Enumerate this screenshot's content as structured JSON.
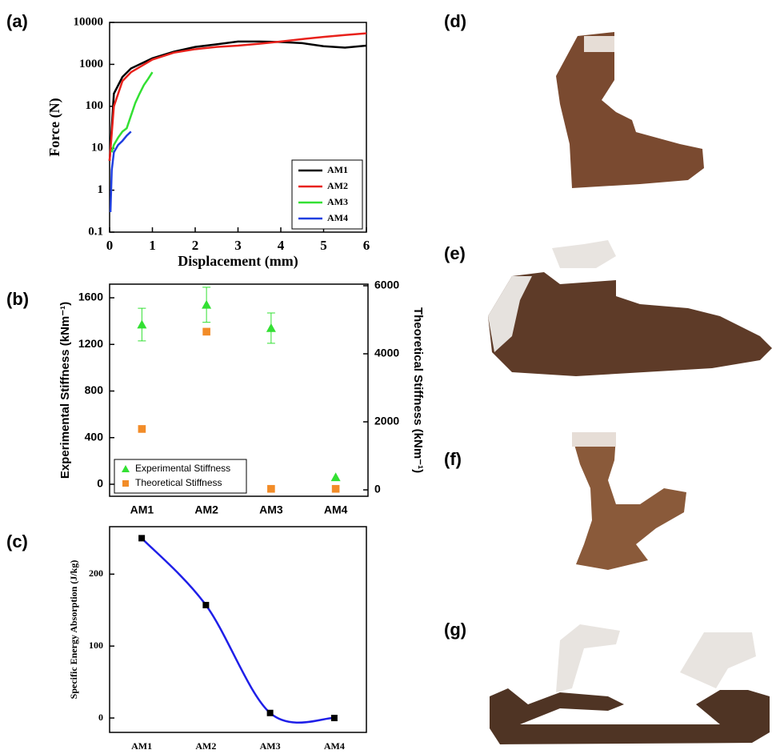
{
  "chart_data": [
    {
      "type": "line",
      "label": "(a)",
      "xlabel": "Displacement (mm)",
      "ylabel": "Force (N)",
      "xlim": [
        0,
        6
      ],
      "xticks": [
        0,
        1,
        2,
        3,
        4,
        5,
        6
      ],
      "ylim": [
        0.1,
        10000
      ],
      "yticks": [
        0.1,
        1,
        10,
        100,
        1000,
        10000
      ],
      "yscale": "log",
      "legend": "lower right",
      "series": [
        {
          "name": "AM1",
          "color": "#000000",
          "x": [
            0,
            0.1,
            0.3,
            0.5,
            1,
            1.5,
            2,
            2.5,
            3,
            3.5,
            4,
            4.5,
            5,
            5.5,
            6
          ],
          "values": [
            5,
            200,
            500,
            800,
            1400,
            2000,
            2600,
            3000,
            3500,
            3500,
            3400,
            3200,
            2700,
            2500,
            2800
          ]
        },
        {
          "name": "AM2",
          "color": "#e8211b",
          "x": [
            0,
            0.1,
            0.3,
            0.5,
            1,
            1.5,
            2,
            2.5,
            3,
            3.5,
            4,
            4.5,
            5,
            5.5,
            6
          ],
          "values": [
            5,
            100,
            400,
            650,
            1300,
            1900,
            2300,
            2600,
            2800,
            3100,
            3500,
            4000,
            4500,
            5000,
            5500
          ]
        },
        {
          "name": "AM3",
          "color": "#33e033",
          "x": [
            0.05,
            0.1,
            0.2,
            0.3,
            0.4,
            0.5,
            0.6,
            0.7,
            0.8,
            0.9,
            1.0
          ],
          "values": [
            8,
            12,
            18,
            25,
            30,
            60,
            120,
            200,
            320,
            450,
            650
          ]
        },
        {
          "name": "AM4",
          "color": "#1f3fe0",
          "x": [
            0.02,
            0.05,
            0.1,
            0.2,
            0.3,
            0.4,
            0.5
          ],
          "values": [
            0.3,
            3,
            8,
            12,
            15,
            20,
            25
          ]
        }
      ]
    },
    {
      "type": "scatter",
      "label": "(b)",
      "ylabel": "Experimental Stiffness (kNm⁻¹)",
      "y2label": "Theoretical Stiffness (kNm⁻¹)",
      "categories": [
        "AM1",
        "AM2",
        "AM3",
        "AM4"
      ],
      "ylim": [
        -103,
        1717
      ],
      "yticks": [
        0,
        400,
        800,
        1200,
        1600
      ],
      "y2lim": [
        -188,
        6047
      ],
      "y2ticks": [
        0,
        2000,
        4000,
        6000
      ],
      "legend": "lower left",
      "series": [
        {
          "name": "Experimental Stiffness",
          "color": "#33e033",
          "marker": "triangle",
          "values": [
            1370,
            1540,
            1340,
            60
          ],
          "errors": [
            140,
            150,
            130,
            null
          ]
        },
        {
          "name": "Theoretical Stiffness",
          "color": "#f28c28",
          "marker": "square",
          "axis": "y2",
          "values": [
            1790,
            4650,
            30,
            30
          ]
        }
      ]
    },
    {
      "type": "line",
      "label": "(c)",
      "ylabel": "Specific Energy Absorption (J/kg)",
      "categories": [
        "AM1",
        "AM2",
        "AM3",
        "AM4"
      ],
      "smooth": true,
      "marker": "square",
      "marker_color": "#000000",
      "ylim": [
        -20,
        266
      ],
      "yticks": [
        0,
        100,
        200
      ],
      "series": [
        {
          "color": "#1f1fe8",
          "values": [
            250,
            157,
            7,
            0
          ]
        }
      ]
    }
  ],
  "image_panels": [
    "(d)",
    "(e)",
    "(f)",
    "(g)"
  ]
}
